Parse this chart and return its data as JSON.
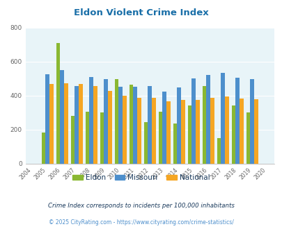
{
  "title": "Eldon Violent Crime Index",
  "title_color": "#1a6fa8",
  "years": [
    2004,
    2005,
    2006,
    2007,
    2008,
    2009,
    2010,
    2011,
    2012,
    2013,
    2014,
    2015,
    2016,
    2017,
    2018,
    2019,
    2020
  ],
  "eldon": [
    null,
    183,
    707,
    280,
    305,
    302,
    495,
    463,
    245,
    305,
    238,
    343,
    457,
    150,
    344,
    300,
    null
  ],
  "missouri": [
    null,
    527,
    550,
    455,
    508,
    497,
    453,
    452,
    457,
    423,
    447,
    502,
    523,
    532,
    507,
    497,
    null
  ],
  "national": [
    null,
    469,
    474,
    470,
    457,
    429,
    400,
    387,
    387,
    368,
    376,
    373,
    387,
    395,
    383,
    380,
    null
  ],
  "eldon_color": "#8ab832",
  "missouri_color": "#4d8fcc",
  "national_color": "#f5a623",
  "bg_color": "#e8f4f8",
  "ylim": [
    0,
    800
  ],
  "yticks": [
    0,
    200,
    400,
    600,
    800
  ],
  "bar_width": 0.27,
  "legend_labels": [
    "Eldon",
    "Missouri",
    "National"
  ],
  "footnote1": "Crime Index corresponds to incidents per 100,000 inhabitants",
  "footnote2": "© 2025 CityRating.com - https://www.cityrating.com/crime-statistics/",
  "footnote1_color": "#1a3a5c",
  "footnote2_color": "#4d8fcc",
  "grid_color": "#ffffff",
  "axis_label_color": "#666666"
}
